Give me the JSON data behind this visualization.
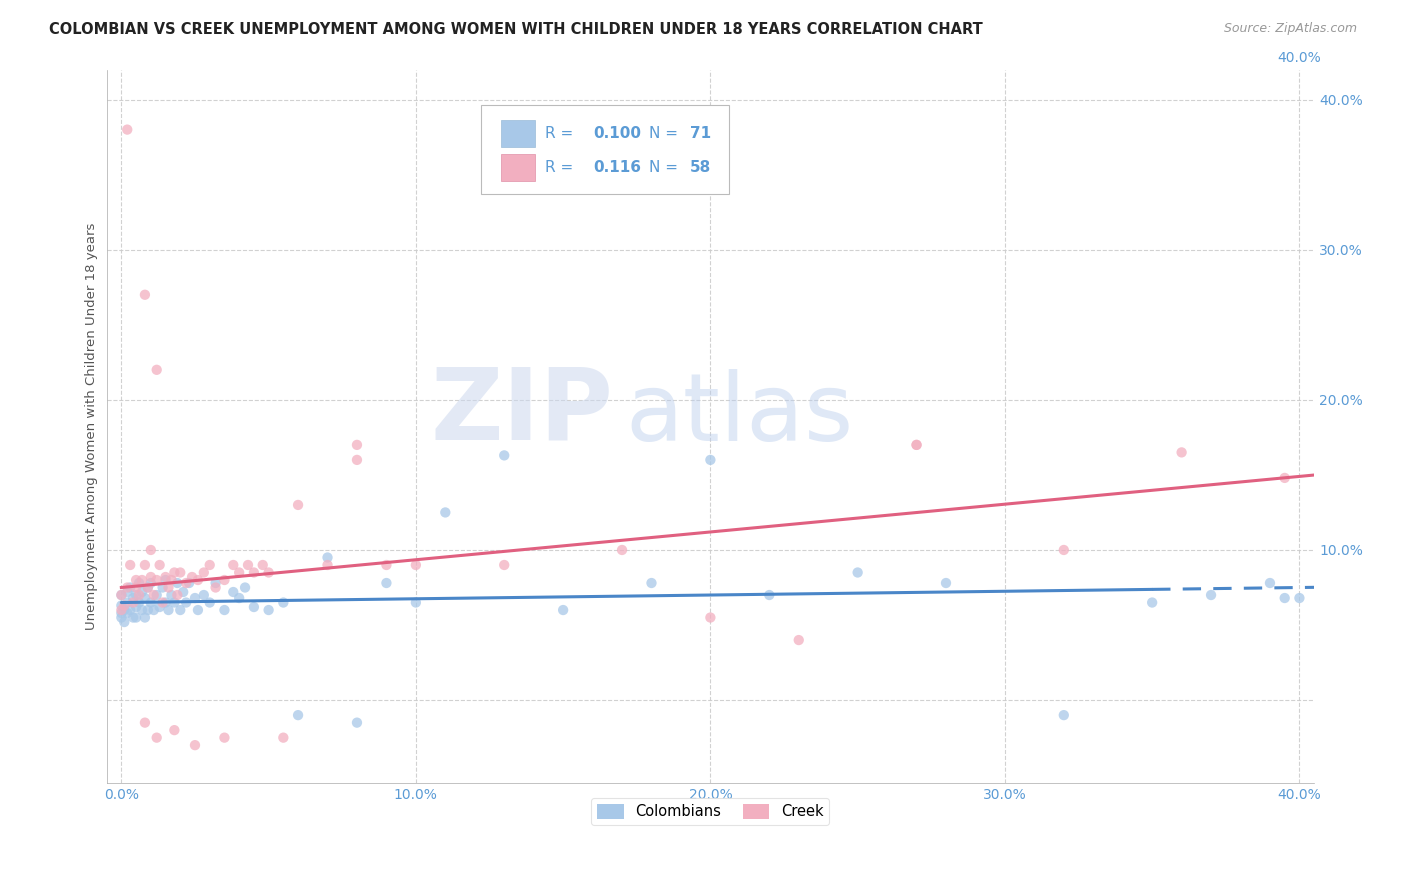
{
  "title": "COLOMBIAN VS CREEK UNEMPLOYMENT AMONG WOMEN WITH CHILDREN UNDER 18 YEARS CORRELATION CHART",
  "source": "Source: ZipAtlas.com",
  "ylabel": "Unemployment Among Women with Children Under 18 years",
  "xlim": [
    -0.005,
    0.405
  ],
  "ylim": [
    -0.055,
    0.42
  ],
  "xticks": [
    0.0,
    0.1,
    0.2,
    0.3,
    0.4
  ],
  "yticks_right": [
    0.1,
    0.2,
    0.3,
    0.4
  ],
  "xtick_labels": [
    "0.0%",
    "10.0%",
    "20.0%",
    "30.0%",
    "40.0%"
  ],
  "ytick_labels_right": [
    "10.0%",
    "20.0%",
    "30.0%",
    "40.0%"
  ],
  "colombians_R": 0.1,
  "colombians_N": 71,
  "creek_R": 0.116,
  "creek_N": 58,
  "colombian_color": "#a8c8e8",
  "creek_color": "#f2afc0",
  "colombian_line_color": "#4a86c8",
  "creek_line_color": "#e06080",
  "background_color": "#ffffff",
  "grid_color": "#cccccc",
  "tick_color": "#5b9bd5",
  "title_fontsize": 10.5,
  "axis_label_fontsize": 9.5,
  "tick_fontsize": 10,
  "source_fontsize": 9,
  "legend_R_color": "#333333",
  "legend_N_color": "#5b9bd5",
  "watermark_zip_color": "#c8d8f0",
  "watermark_atlas_color": "#b0c8e8"
}
